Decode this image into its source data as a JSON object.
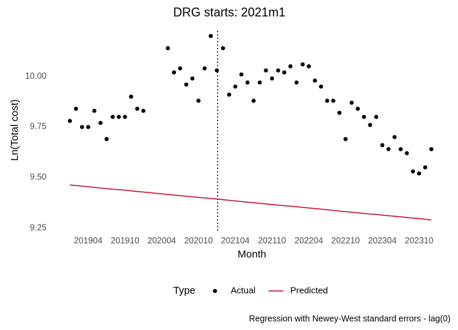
{
  "chart_data": {
    "type": "scatter",
    "title": "DRG starts: 2021m1",
    "xlabel": "Month",
    "ylabel": "Ln(Total cost)",
    "caption": "Regression with Newey-West standard errors - lag(0)",
    "legend_title": "Type",
    "categories": [
      null,
      null,
      null,
      "201904",
      null,
      null,
      null,
      null,
      null,
      "201910",
      null,
      null,
      null,
      null,
      null,
      "202004",
      null,
      null,
      null,
      null,
      null,
      "202010",
      null,
      null,
      null,
      null,
      null,
      "202104",
      null,
      null,
      null,
      null,
      null,
      "202110",
      null,
      null,
      null,
      null,
      null,
      "202204",
      null,
      null,
      null,
      null,
      null,
      "202210",
      null,
      null,
      null,
      null,
      null,
      "202304",
      null,
      null,
      null,
      null,
      null,
      "202310",
      null,
      null
    ],
    "series": [
      {
        "name": "Actual",
        "kind": "points",
        "color": "#000000",
        "values": [
          9.78,
          9.84,
          9.75,
          9.75,
          9.83,
          9.77,
          9.69,
          9.8,
          9.8,
          9.8,
          9.9,
          9.84,
          9.83,
          null,
          null,
          null,
          10.14,
          10.02,
          10.04,
          9.96,
          9.99,
          9.88,
          10.04,
          10.2,
          10.03,
          10.14,
          9.91,
          9.95,
          10.01,
          9.97,
          9.88,
          9.97,
          10.03,
          9.99,
          10.03,
          10.02,
          10.05,
          9.97,
          10.06,
          10.05,
          9.98,
          9.95,
          9.88,
          9.88,
          9.82,
          9.69,
          9.87,
          9.84,
          9.8,
          9.76,
          9.8,
          9.66,
          9.64,
          9.7,
          9.64,
          9.62,
          9.53,
          9.52,
          9.55,
          9.64
        ]
      },
      {
        "name": "Predicted",
        "kind": "line",
        "color": "#c8102e",
        "values": [
          9.463,
          9.46,
          9.457,
          9.454,
          9.451,
          9.448,
          9.445,
          9.442,
          9.44,
          9.437,
          9.434,
          9.431,
          9.428,
          9.425,
          9.422,
          9.419,
          9.416,
          9.413,
          9.41,
          9.407,
          9.404,
          9.401,
          9.399,
          9.396,
          9.393,
          9.39,
          9.387,
          9.384,
          9.381,
          9.378,
          9.375,
          9.372,
          9.369,
          9.366,
          9.363,
          9.36,
          9.358,
          9.355,
          9.352,
          9.349,
          9.346,
          9.343,
          9.34,
          9.337,
          9.334,
          9.331,
          9.328,
          9.325,
          9.322,
          9.319,
          9.317,
          9.314,
          9.311,
          9.308,
          9.305,
          9.302,
          9.299,
          9.296,
          9.293,
          9.29
        ]
      }
    ],
    "vline_at": 24,
    "ylim": [
      9.233,
      10.226
    ],
    "yticks": [
      {
        "value": 9.25,
        "label": "9.25"
      },
      {
        "value": 9.5,
        "label": "9.50"
      },
      {
        "value": 9.75,
        "label": "9.75"
      },
      {
        "value": 10,
        "label": "10.00"
      }
    ],
    "grid": false
  }
}
